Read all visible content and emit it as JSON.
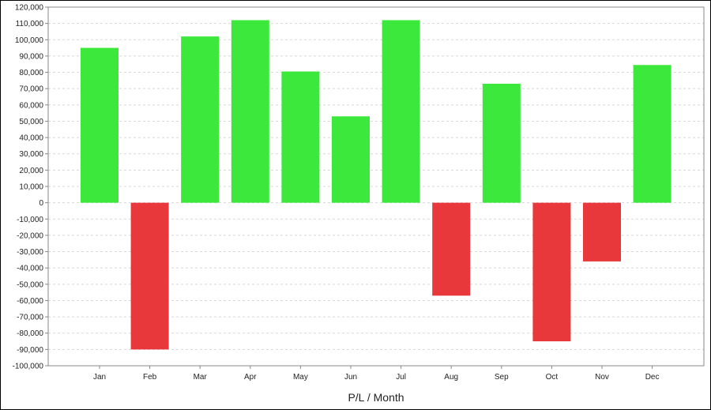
{
  "chart_data": {
    "type": "bar",
    "categories": [
      "Jan",
      "Feb",
      "Mar",
      "Apr",
      "May",
      "Jun",
      "Jul",
      "Aug",
      "Sep",
      "Oct",
      "Nov",
      "Dec"
    ],
    "values": [
      95000,
      -90000,
      102000,
      112000,
      80500,
      53000,
      112000,
      -57000,
      73000,
      -85000,
      -36000,
      84500
    ],
    "xlabel": "P/L / Month",
    "ylabel": "",
    "ylim": [
      -100000,
      120000
    ],
    "ytick_step": 10000,
    "grid": true,
    "colors": {
      "positive": "#3ce83c",
      "negative": "#e8383c"
    }
  }
}
